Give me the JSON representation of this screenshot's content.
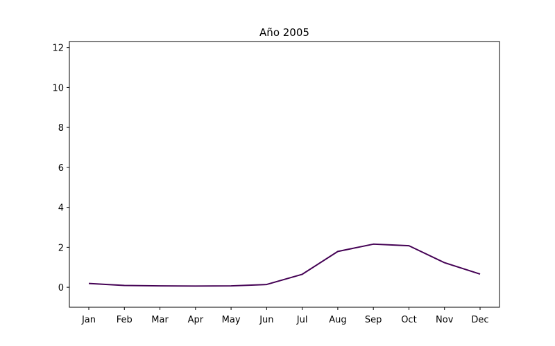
{
  "chart_data": {
    "type": "line",
    "title": "Año 2005",
    "xlabel": "",
    "ylabel": "",
    "categories": [
      "Jan",
      "Feb",
      "Mar",
      "Apr",
      "May",
      "Jun",
      "Jul",
      "Aug",
      "Sep",
      "Oct",
      "Nov",
      "Dec"
    ],
    "series": [
      {
        "values": [
          0.19,
          0.09,
          0.07,
          0.06,
          0.07,
          0.14,
          0.65,
          1.79,
          2.16,
          2.08,
          1.23,
          0.66
        ],
        "color": "#440154"
      }
    ],
    "ylim": [
      -1,
      12.3
    ],
    "yticks": [
      0,
      2,
      4,
      6,
      8,
      10,
      12
    ],
    "grid": false,
    "legend": "none"
  }
}
